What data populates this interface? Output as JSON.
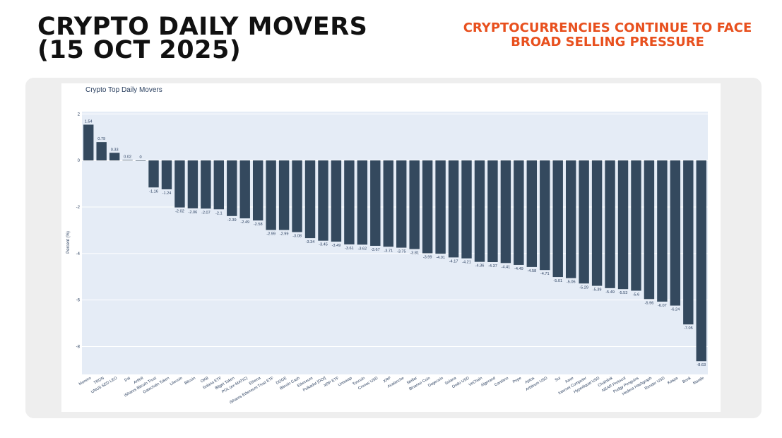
{
  "header": {
    "title_line1": "CRYPTO DAILY MOVERS",
    "title_line2": "(15 OCT 2025)",
    "subtitle": "CRYPTOCURRENCIES CONTINUE TO FACE BROAD SELLING PRESSURE"
  },
  "colors": {
    "bar": "#34495e",
    "plot_bg": "#e5ecf6",
    "accent": "#e8501e"
  },
  "chart_data": {
    "type": "bar",
    "title": "Crypto Top Daily Movers",
    "ylabel": "Percent (%)",
    "xlabel": "",
    "ylim": [
      -9.2,
      2.1
    ],
    "yticks": [
      2,
      0,
      -2,
      -4,
      -6,
      -8
    ],
    "grid": true,
    "categories": [
      "Monero",
      "TRON",
      "UNUS SED LEO",
      "Dai",
      "Artfolt",
      "iShares Bitcoin Trust",
      "Gatechain Token",
      "Litecoin",
      "Bitcoin",
      "OKB",
      "Solana ETF",
      "Bitget Token",
      "POL (ex-MATIC)",
      "Ethena",
      "iShares Ethereum Trust ETF",
      "DOGE",
      "Bitcoin Cash",
      "Ethereum",
      "Polkadot [DOI]",
      "XRP ETF",
      "Uniswap",
      "Toncoin",
      "Cronos USD",
      "XRP",
      "Avalanche",
      "Stellar",
      "Binance Coin",
      "Dogecoin",
      "Solana",
      "Ondo USD",
      "VeChain",
      "Algorand",
      "Cardano",
      "Pepe",
      "Aptos",
      "Arbitrum USD",
      "Sui",
      "Aave",
      "Internet Computer",
      "Hyperliquid USD",
      "Chainlink",
      "NEAR Protocol",
      "Pudgy Penguins",
      "Hedera Hashgraph",
      "Render USD",
      "Kaspa",
      "Bonk",
      "Mantle"
    ],
    "values": [
      1.54,
      0.79,
      0.33,
      0.02,
      0,
      -1.16,
      -1.24,
      -2.02,
      -2.06,
      -2.07,
      -2.1,
      -2.39,
      -2.49,
      -2.58,
      -2.99,
      -2.99,
      -3.08,
      -3.34,
      -3.45,
      -3.49,
      -3.61,
      -3.62,
      -3.67,
      -3.71,
      -3.75,
      -3.81,
      -3.99,
      -4.01,
      -4.17,
      -4.21,
      -4.36,
      -4.37,
      -4.41,
      -4.49,
      -4.58,
      -4.71,
      -5.01,
      -5.06,
      -5.29,
      -5.39,
      -5.49,
      -5.53,
      -5.6,
      -5.96,
      -6.07,
      -6.24,
      -7.05,
      -8.63
    ],
    "labels": [
      "1.54",
      "0.79",
      "0.33",
      "0.02",
      "0",
      "-1.16",
      "-1.24",
      "-2.02",
      "-2.06",
      "-2.07",
      "-2.1",
      "-2.39",
      "-2.49",
      "-2.58",
      "-2.99",
      "-2.99",
      "-3.08",
      "-3.34",
      "-3.45",
      "-3.49",
      "-3.61",
      "-3.62",
      "-3.67",
      "-3.71",
      "-3.75",
      "-3.81",
      "-3.99",
      "-4.01",
      "-4.17",
      "-4.21",
      "-4.36",
      "-4.37",
      "-4.41",
      "-4.49",
      "-4.58",
      "-4.71",
      "-5.01",
      "-5.06",
      "-5.29",
      "-5.39",
      "-5.49",
      "-5.53",
      "-5.6",
      "-5.96",
      "-6.07",
      "-6.24",
      "-7.05",
      "-8.63"
    ]
  }
}
